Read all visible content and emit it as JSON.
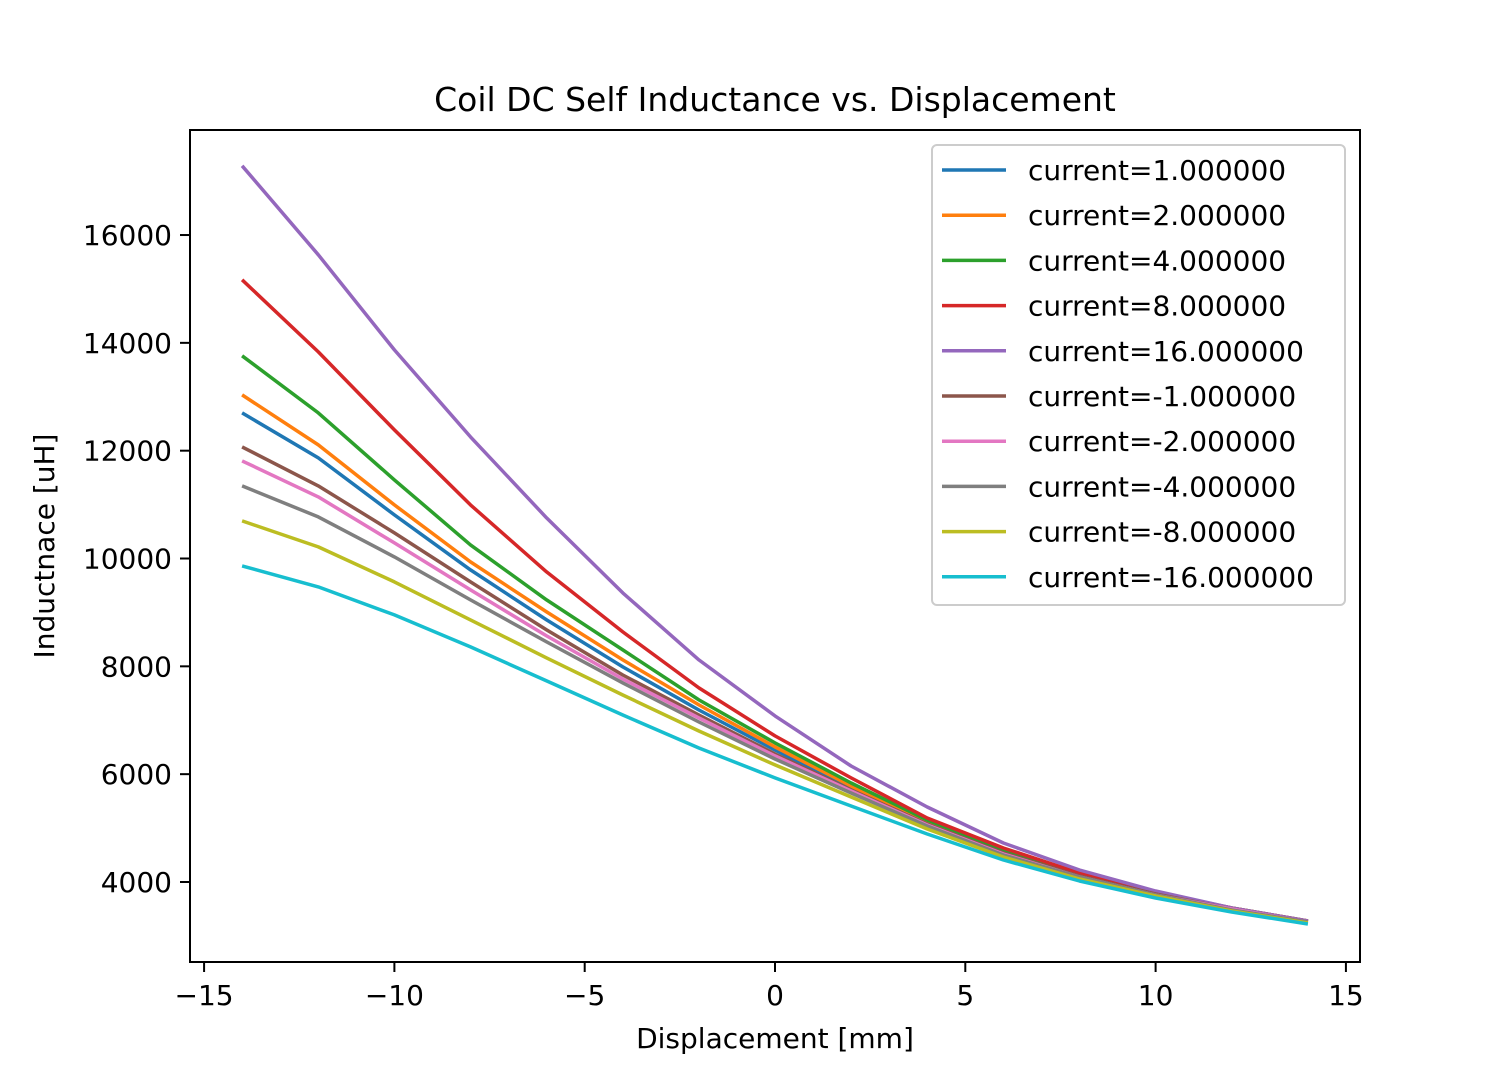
{
  "chart_data": {
    "type": "line",
    "title": "Coil DC Self Inductance vs. Displacement",
    "xlabel": "Displacement [mm]",
    "ylabel": "Inductnace [uH]",
    "xlim": [
      -15.37,
      15.37
    ],
    "ylim": [
      2516,
      17948
    ],
    "xticks": [
      -15,
      -10,
      -5,
      0,
      5,
      10,
      15
    ],
    "xtick_labels": [
      "−15",
      "−10",
      "−5",
      "0",
      "5",
      "10",
      "15"
    ],
    "yticks": [
      4000,
      6000,
      8000,
      10000,
      12000,
      14000,
      16000
    ],
    "ytick_labels": [
      "4000",
      "6000",
      "8000",
      "10000",
      "12000",
      "14000",
      "16000"
    ],
    "grid": false,
    "legend_position": "top-right",
    "x": [
      -14,
      -12,
      -10,
      -8,
      -6,
      -4,
      -2,
      0,
      2,
      4,
      6,
      8,
      10,
      12,
      14
    ],
    "series": [
      {
        "name": "current=1.000000",
        "color": "#1f77b4",
        "values": [
          12701,
          11866,
          10809,
          9788,
          8861,
          7989,
          7191,
          6449,
          5744,
          5095,
          4557,
          4111,
          3777,
          3499,
          3258
        ]
      },
      {
        "name": "current=2.000000",
        "color": "#ff7f0e",
        "values": [
          13035,
          12108,
          10994,
          9937,
          9009,
          8119,
          7284,
          6505,
          5781,
          5113,
          4575,
          4130,
          3796,
          3518,
          3276
        ]
      },
      {
        "name": "current=4.000000",
        "color": "#2ca02c",
        "values": [
          13759,
          12701,
          11458,
          10252,
          9232,
          8304,
          7377,
          6579,
          5837,
          5150,
          4594,
          4148,
          3796,
          3518,
          3276
        ]
      },
      {
        "name": "current=8.000000",
        "color": "#d62728",
        "values": [
          15169,
          13833,
          12386,
          10994,
          9751,
          8638,
          7600,
          6709,
          5930,
          5187,
          4631,
          4167,
          3815,
          3518,
          3276
        ]
      },
      {
        "name": "current=16.000000",
        "color": "#9467bd",
        "values": [
          17284,
          15633,
          13870,
          12256,
          10753,
          9362,
          8119,
          7080,
          6152,
          5391,
          4724,
          4223,
          3833,
          3518,
          3276
        ]
      },
      {
        "name": "current=-1.000000",
        "color": "#8c564b",
        "values": [
          12071,
          11347,
          10475,
          9566,
          8675,
          7840,
          7098,
          6375,
          5707,
          5076,
          4538,
          4111,
          3777,
          3499,
          3258
        ]
      },
      {
        "name": "current=-2.000000",
        "color": "#e377c2",
        "values": [
          11811,
          11143,
          10290,
          9417,
          8564,
          7766,
          7043,
          6338,
          5688,
          5058,
          4519,
          4093,
          3759,
          3499,
          3258
        ]
      },
      {
        "name": "current=-4.000000",
        "color": "#7f7f7f",
        "values": [
          11347,
          10772,
          10030,
          9232,
          8453,
          7692,
          6968,
          6282,
          5651,
          5039,
          4501,
          4093,
          3759,
          3481,
          3258
        ]
      },
      {
        "name": "current=-8.000000",
        "color": "#bcbd22",
        "values": [
          10698,
          10215,
          9566,
          8861,
          8156,
          7469,
          6801,
          6171,
          5577,
          4983,
          4464,
          4056,
          3740,
          3462,
          3239
        ]
      },
      {
        "name": "current=-16.000000",
        "color": "#17becf",
        "values": [
          9863,
          9473,
          8954,
          8360,
          7729,
          7098,
          6486,
          5930,
          5410,
          4891,
          4408,
          4019,
          3703,
          3443,
          3221
        ]
      }
    ]
  }
}
